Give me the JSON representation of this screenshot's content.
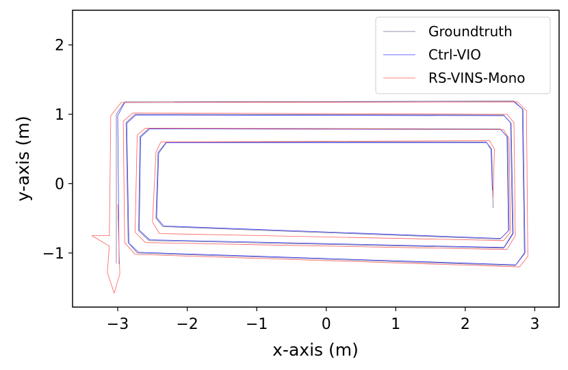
{
  "chart_data": {
    "type": "line",
    "xlabel": "x-axis (m)",
    "ylabel": "y-axis (m)",
    "xlim": [
      -3.65,
      3.35
    ],
    "ylim": [
      -1.78,
      2.5
    ],
    "xticks": [
      {
        "value": -3,
        "label": "−3"
      },
      {
        "value": -2,
        "label": "−2"
      },
      {
        "value": -1,
        "label": "−1"
      },
      {
        "value": 0,
        "label": "0"
      },
      {
        "value": 1,
        "label": "1"
      },
      {
        "value": 2,
        "label": "2"
      },
      {
        "value": 3,
        "label": "3"
      }
    ],
    "yticks": [
      {
        "value": -1,
        "label": "−1"
      },
      {
        "value": 0,
        "label": "0"
      },
      {
        "value": 1,
        "label": "1"
      },
      {
        "value": 2,
        "label": "2"
      }
    ],
    "grid": false,
    "legend_position": "upper right",
    "series": [
      {
        "name": "Groundtruth",
        "color": "#6b6b8f",
        "points": [
          [
            -3.02,
            -1.15
          ],
          [
            -3.02,
            1.0
          ],
          [
            -2.9,
            1.18
          ],
          [
            2.7,
            1.19
          ],
          [
            2.82,
            1.08
          ],
          [
            2.85,
            -1.0
          ],
          [
            2.72,
            -1.18
          ],
          [
            -2.72,
            -1.0
          ],
          [
            -2.85,
            -0.85
          ],
          [
            -2.88,
            0.88
          ],
          [
            -2.75,
            1.0
          ],
          [
            2.55,
            0.99
          ],
          [
            2.65,
            0.88
          ],
          [
            2.68,
            -0.72
          ],
          [
            2.55,
            -0.93
          ],
          [
            -2.55,
            -0.82
          ],
          [
            -2.7,
            -0.68
          ],
          [
            -2.68,
            0.68
          ],
          [
            -2.55,
            0.8
          ],
          [
            2.5,
            0.79
          ],
          [
            2.6,
            0.68
          ],
          [
            2.62,
            -0.68
          ],
          [
            2.5,
            -0.8
          ],
          [
            -2.35,
            -0.62
          ],
          [
            -2.45,
            -0.5
          ],
          [
            -2.42,
            0.45
          ],
          [
            -2.3,
            0.6
          ],
          [
            2.3,
            0.6
          ],
          [
            2.38,
            0.5
          ],
          [
            2.4,
            -0.35
          ]
        ]
      },
      {
        "name": "Ctrl-VIO",
        "color": "#3a3aff",
        "points": [
          [
            -2.98,
            -1.16
          ],
          [
            -3.0,
            0.98
          ],
          [
            -2.9,
            1.17
          ],
          [
            2.7,
            1.18
          ],
          [
            2.83,
            1.07
          ],
          [
            2.86,
            -1.0
          ],
          [
            2.73,
            -1.17
          ],
          [
            -2.7,
            -0.99
          ],
          [
            -2.84,
            -0.86
          ],
          [
            -2.87,
            0.87
          ],
          [
            -2.74,
            0.99
          ],
          [
            2.56,
            0.98
          ],
          [
            2.66,
            0.87
          ],
          [
            2.69,
            -0.72
          ],
          [
            2.56,
            -0.92
          ],
          [
            -2.54,
            -0.81
          ],
          [
            -2.69,
            -0.67
          ],
          [
            -2.67,
            0.67
          ],
          [
            -2.54,
            0.79
          ],
          [
            2.51,
            0.78
          ],
          [
            2.61,
            0.67
          ],
          [
            2.63,
            -0.67
          ],
          [
            2.51,
            -0.79
          ],
          [
            -2.34,
            -0.61
          ],
          [
            -2.44,
            -0.49
          ],
          [
            -2.41,
            0.44
          ],
          [
            -2.3,
            0.59
          ],
          [
            2.31,
            0.59
          ],
          [
            2.37,
            0.49
          ],
          [
            2.39,
            -0.1
          ]
        ]
      },
      {
        "name": "RS-VINS-Mono",
        "color": "#ff5a5a",
        "points": [
          [
            -3.0,
            -0.3
          ],
          [
            -2.97,
            -1.3
          ],
          [
            -3.05,
            -1.58
          ],
          [
            -3.15,
            -1.28
          ],
          [
            -3.12,
            -0.9
          ],
          [
            -3.37,
            -0.75
          ],
          [
            -3.12,
            -0.75
          ],
          [
            -3.1,
            0.98
          ],
          [
            -2.95,
            1.17
          ],
          [
            2.75,
            1.18
          ],
          [
            2.88,
            1.05
          ],
          [
            2.9,
            -1.05
          ],
          [
            2.78,
            -1.2
          ],
          [
            -2.75,
            -1.02
          ],
          [
            -2.9,
            -0.85
          ],
          [
            -2.92,
            0.9
          ],
          [
            -2.78,
            1.02
          ],
          [
            2.6,
            1.0
          ],
          [
            2.7,
            0.88
          ],
          [
            2.72,
            -0.75
          ],
          [
            2.6,
            -0.95
          ],
          [
            -2.6,
            -0.85
          ],
          [
            -2.75,
            -0.7
          ],
          [
            -2.72,
            0.7
          ],
          [
            -2.6,
            0.8
          ],
          [
            2.55,
            0.78
          ],
          [
            2.63,
            0.65
          ],
          [
            2.65,
            -0.7
          ],
          [
            2.55,
            -0.82
          ],
          [
            -2.4,
            -0.72
          ],
          [
            -2.5,
            -0.55
          ],
          [
            -2.45,
            0.45
          ],
          [
            -2.38,
            0.6
          ],
          [
            2.35,
            0.62
          ],
          [
            2.42,
            0.5
          ],
          [
            2.4,
            -0.2
          ]
        ]
      }
    ]
  }
}
